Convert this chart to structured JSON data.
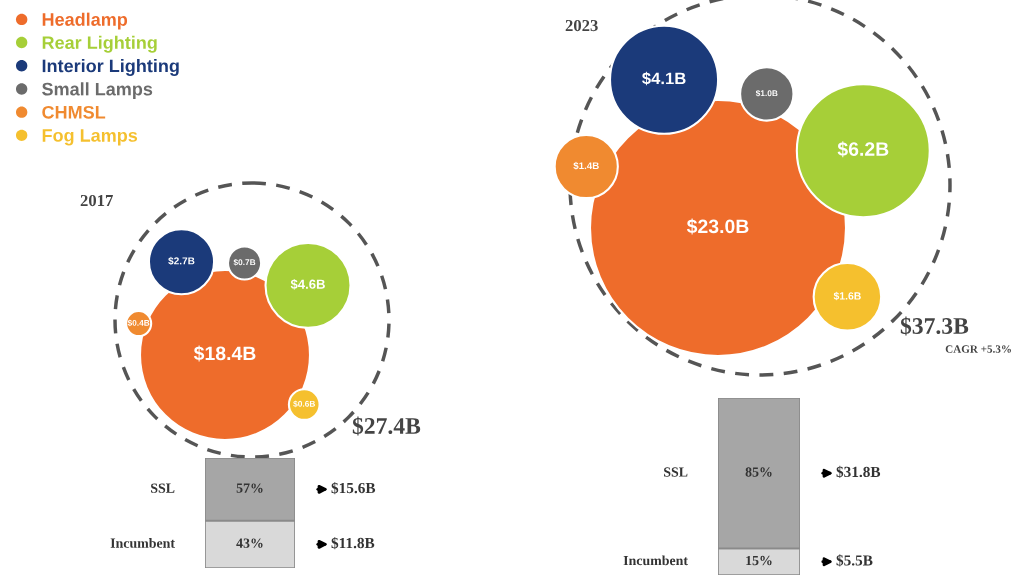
{
  "chart_data": [
    {
      "type": "other",
      "categories": [
        "2017",
        "2023"
      ],
      "annotations": [
        "$27.4B",
        "$37.3B",
        "CAGR +5.3%"
      ],
      "legend": "top left",
      "series": [
        {
          "name": "Headlamp",
          "color": "#ee6c2b",
          "values": [
            18.4,
            23.0
          ],
          "value_labels": [
            "$18.4B",
            "$23.0B"
          ]
        },
        {
          "name": "Rear Lighting",
          "color": "#a6cf38",
          "values": [
            4.6,
            6.2
          ],
          "value_labels": [
            "$4.6B",
            "$6.2B"
          ]
        },
        {
          "name": "Interior Lighting",
          "color": "#1b3a7a",
          "values": [
            2.7,
            4.1
          ],
          "value_labels": [
            "$2.7B",
            "$4.1B"
          ]
        },
        {
          "name": "Small Lamps",
          "color": "#6b6b6b",
          "values": [
            0.7,
            1.0
          ],
          "value_labels": [
            "$0.7B",
            "$1.0B"
          ]
        },
        {
          "name": "CHMSL",
          "color": "#f08a30",
          "values": [
            0.4,
            1.4
          ],
          "value_labels": [
            "$0.4B",
            "$1.4B"
          ]
        },
        {
          "name": "Fog Lamps",
          "color": "#f5c02e",
          "values": [
            0.6,
            1.6
          ],
          "value_labels": [
            "$0.6B",
            "$1.6B"
          ]
        }
      ]
    },
    {
      "type": "bar",
      "stacked": true,
      "categories": [
        null
      ],
      "ylim": [
        0,
        100
      ],
      "tick_labels": false,
      "annotations": [
        "$11.8B",
        "$15.6B"
      ],
      "series": [
        {
          "name": "Incumbent",
          "color": "#d9d9d9",
          "values": [
            43
          ],
          "value_labels": [
            "43%"
          ]
        },
        {
          "name": "SSL",
          "color": "#a6a6a6",
          "values": [
            57
          ],
          "value_labels": [
            "57%"
          ]
        }
      ]
    },
    {
      "type": "bar",
      "stacked": true,
      "categories": [
        null
      ],
      "ylim": [
        0,
        100
      ],
      "tick_labels": false,
      "annotations": [
        "$5.5B",
        "$31.8B"
      ],
      "series": [
        {
          "name": "Incumbent",
          "color": "#d9d9d9",
          "values": [
            15
          ],
          "value_labels": [
            "15%"
          ]
        },
        {
          "name": "SSL",
          "color": "#a6a6a6",
          "values": [
            85
          ],
          "value_labels": [
            "85%"
          ]
        }
      ]
    }
  ]
}
